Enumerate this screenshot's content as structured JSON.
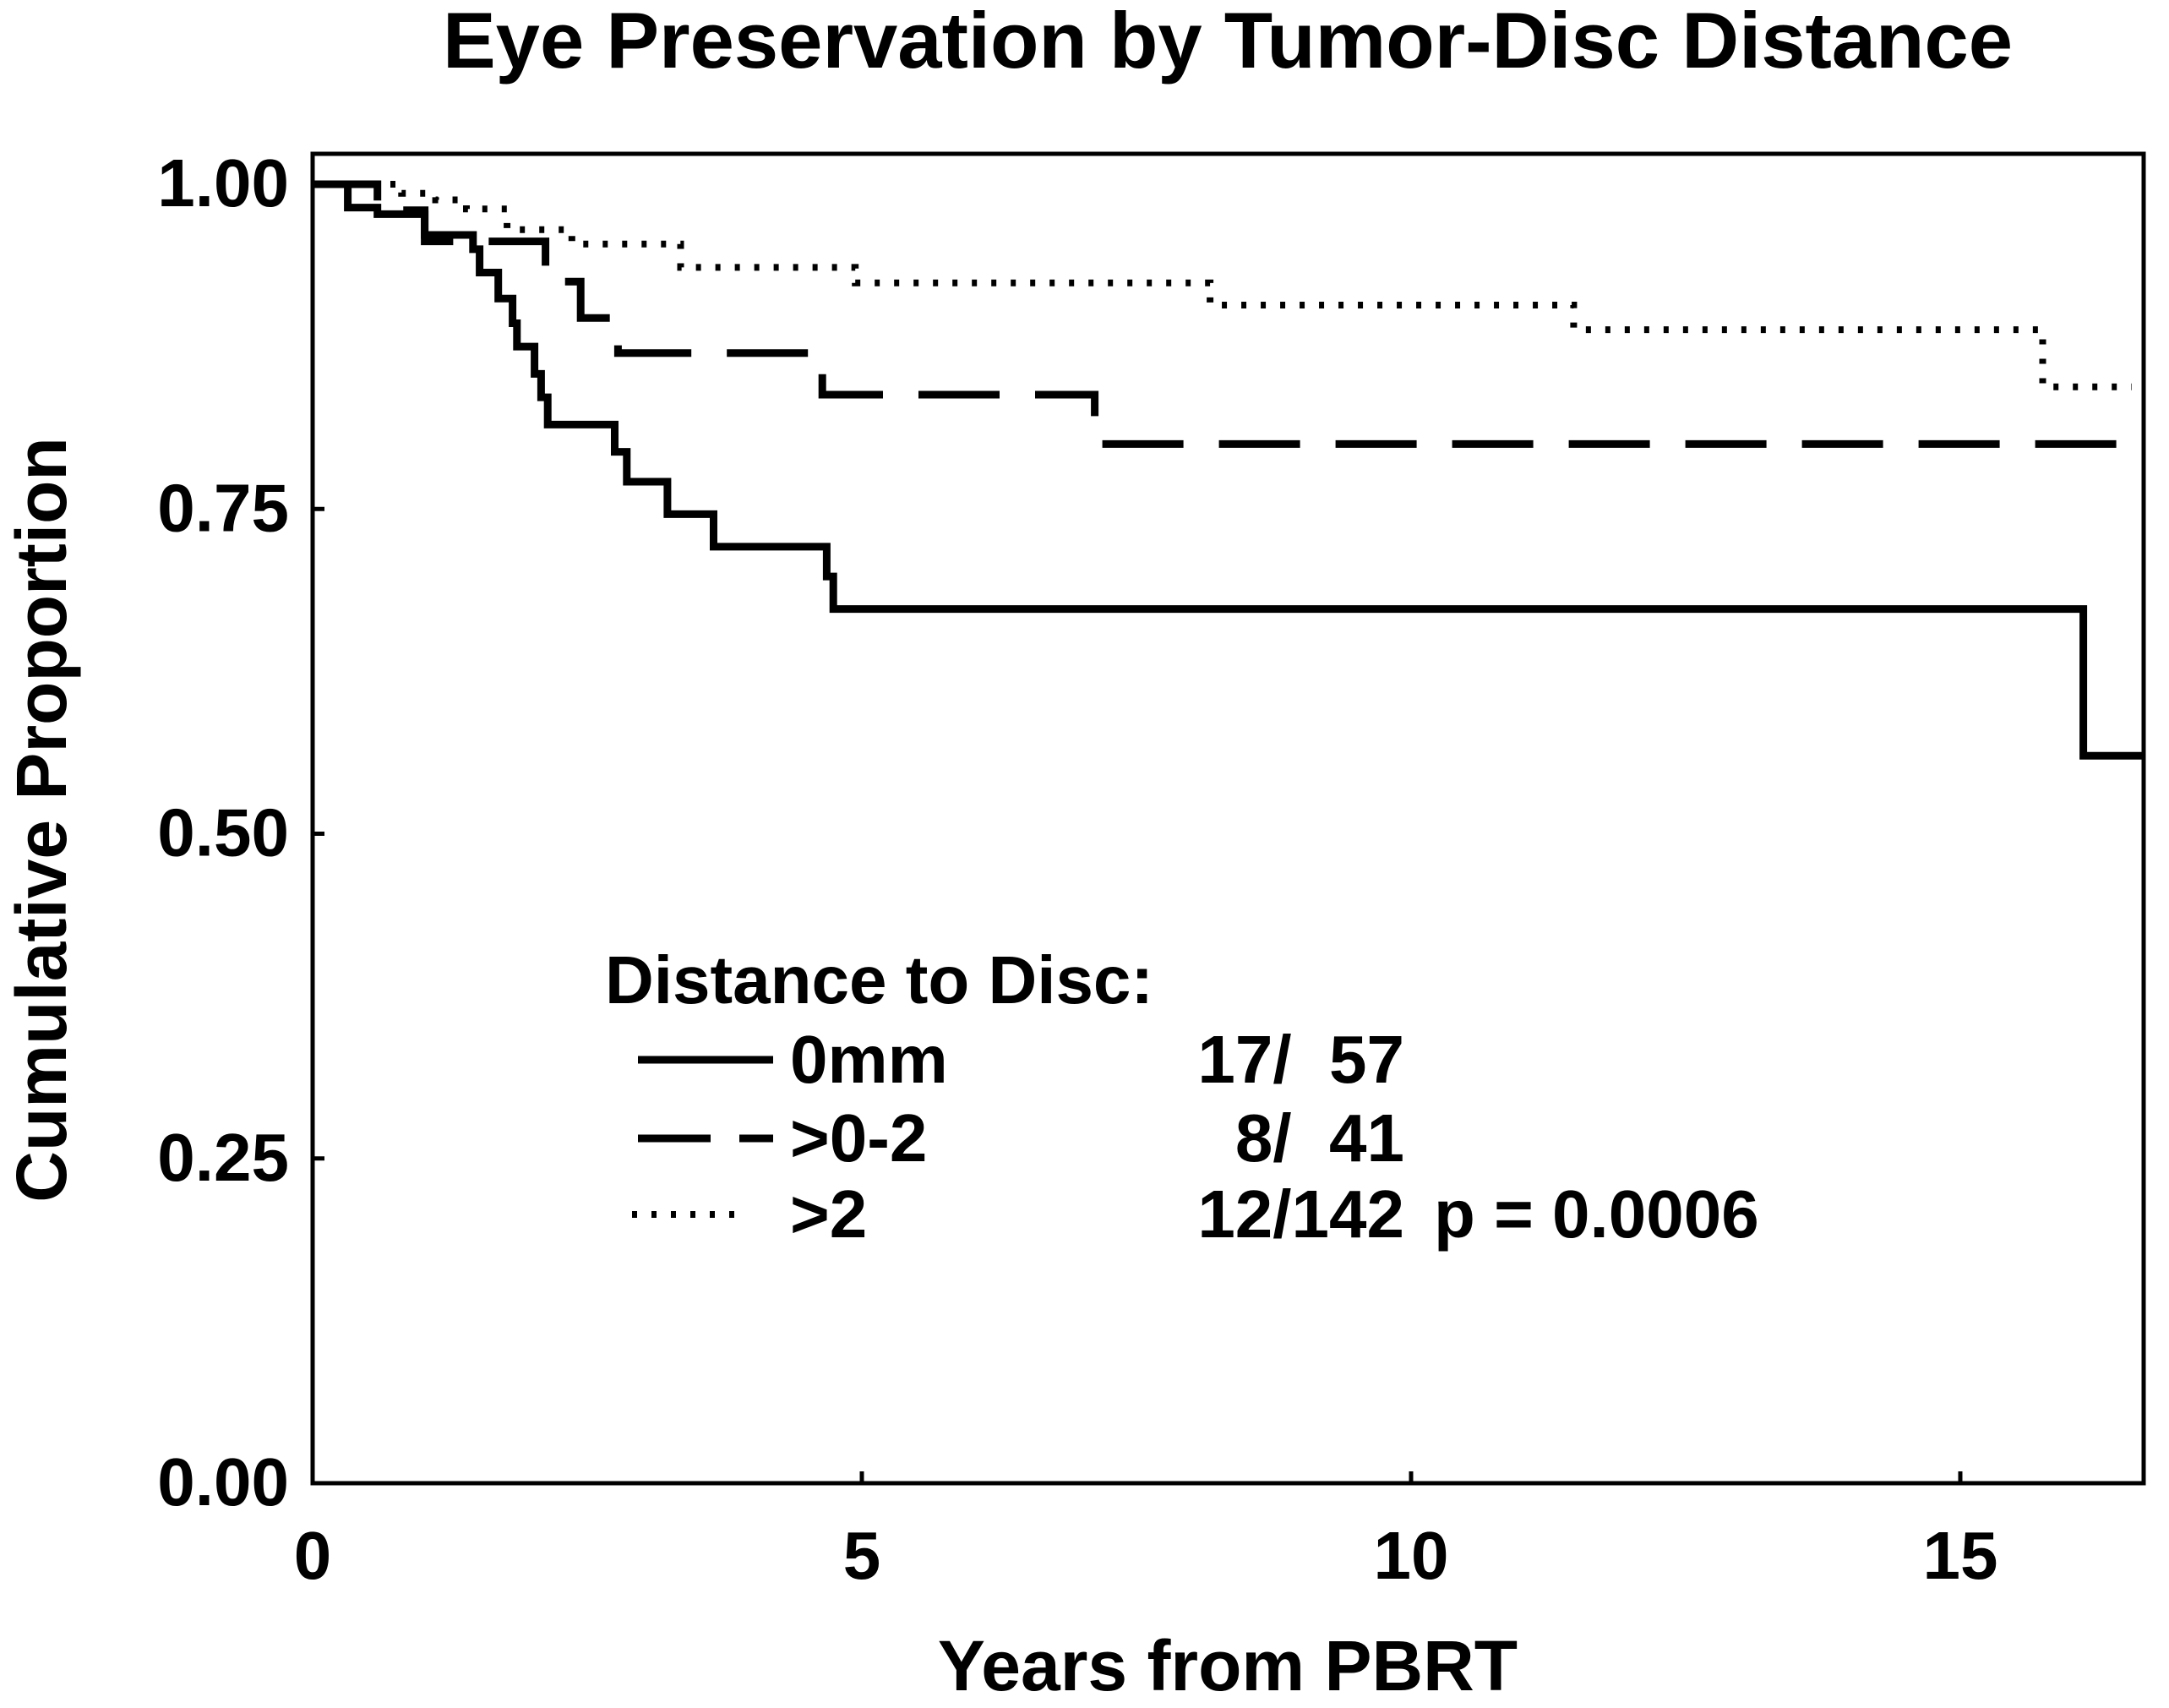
{
  "title": "Eye Preservation by Tumor-Disc Distance",
  "colors": {
    "foreground": "#000000",
    "background": "#ffffff"
  },
  "legend": {
    "header": "Distance to Disc:",
    "rows": [
      {
        "label": "0mm",
        "count": "17/  57",
        "style": "solid"
      },
      {
        "label": ">0-2",
        "count": "8/  41",
        "style": "dashed"
      },
      {
        "label": ">2",
        "count": "12/142",
        "style": "dotted"
      }
    ],
    "p_value": "p = 0.0006"
  },
  "chart_data": {
    "type": "line",
    "subtype": "kaplan-meier-step",
    "title": "Eye Preservation by Tumor-Disc Distance",
    "xlabel": "Years from PBRT",
    "ylabel": "Cumulative Proportion",
    "xlim": [
      0,
      16.67
    ],
    "ylim": [
      0,
      1
    ],
    "grid": false,
    "legend_position": "inside-center-left",
    "x_ticks": [
      {
        "value": 0,
        "label": "0"
      },
      {
        "value": 5,
        "label": "5"
      },
      {
        "value": 10,
        "label": "10"
      },
      {
        "value": 15,
        "label": "15"
      }
    ],
    "y_ticks": [
      {
        "value": 1.0,
        "label": "1.00"
      },
      {
        "value": 0.75,
        "label": "0.75"
      },
      {
        "value": 0.5,
        "label": "0.50"
      },
      {
        "value": 0.25,
        "label": "0.25"
      },
      {
        "value": 0.0,
        "label": "0.00"
      }
    ],
    "p_value": "p = 0.0006",
    "series": [
      {
        "name": "0mm",
        "style": "solid",
        "events": 17,
        "n": 57,
        "points": [
          [
            0,
            1.0
          ],
          [
            0.32,
            0.982
          ],
          [
            0.59,
            0.977
          ],
          [
            1.02,
            0.961
          ],
          [
            1.46,
            0.95
          ],
          [
            1.52,
            0.932
          ],
          [
            1.69,
            0.912
          ],
          [
            1.82,
            0.893
          ],
          [
            1.86,
            0.875
          ],
          [
            2.02,
            0.854
          ],
          [
            2.08,
            0.836
          ],
          [
            2.14,
            0.815
          ],
          [
            2.75,
            0.794
          ],
          [
            2.86,
            0.771
          ],
          [
            3.23,
            0.746
          ],
          [
            3.65,
            0.721
          ],
          [
            4.68,
            0.698
          ],
          [
            4.74,
            0.673
          ],
          [
            16.12,
            0.56
          ],
          [
            16.67,
            0.56
          ]
        ]
      },
      {
        "name": ">0-2",
        "style": "dashed",
        "events": 8,
        "n": 41,
        "points": [
          [
            0,
            1.0
          ],
          [
            0.59,
            0.98
          ],
          [
            1.02,
            0.956
          ],
          [
            2.12,
            0.925
          ],
          [
            2.44,
            0.897
          ],
          [
            2.78,
            0.87
          ],
          [
            4.64,
            0.838
          ],
          [
            7.12,
            0.8
          ],
          [
            16.67,
            0.8
          ]
        ]
      },
      {
        "name": ">2",
        "style": "dotted",
        "events": 12,
        "n": 142,
        "points": [
          [
            0,
            1.0
          ],
          [
            0.81,
            0.993
          ],
          [
            1.12,
            0.988
          ],
          [
            1.4,
            0.981
          ],
          [
            1.77,
            0.965
          ],
          [
            2.36,
            0.954
          ],
          [
            3.35,
            0.936
          ],
          [
            4.94,
            0.924
          ],
          [
            8.17,
            0.907
          ],
          [
            11.48,
            0.888
          ],
          [
            15.75,
            0.844
          ],
          [
            16.56,
            0.844
          ]
        ]
      }
    ]
  }
}
